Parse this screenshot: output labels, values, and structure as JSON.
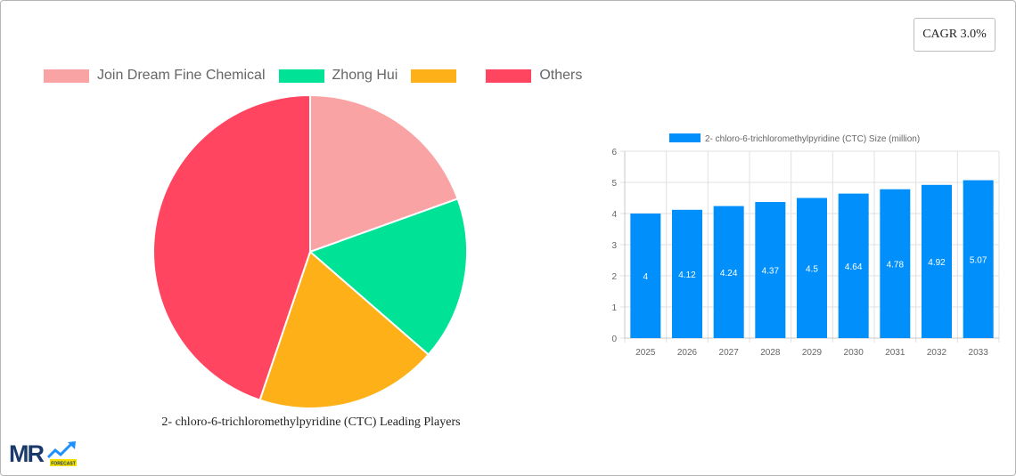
{
  "cagr": {
    "label": "CAGR 3.0%"
  },
  "pie": {
    "caption": "2- chloro-6-trichloromethylpyridine (CTC) Leading Players",
    "legend": [
      {
        "label": "Join Dream Fine Chemical",
        "color": "#f9a3a4"
      },
      {
        "label": "Zhong Hui",
        "color": "#00e396"
      },
      {
        "label": "",
        "color": "#feb019"
      },
      {
        "label": "Others",
        "color": "#ff4560"
      }
    ]
  },
  "bar": {
    "legend_label": "2- chloro-6-trichloromethylpyridine (CTC) Size (million)",
    "color": "#008ffb"
  },
  "logo": {
    "text": "MR",
    "badge": "FORECAST"
  },
  "chart_data": [
    {
      "type": "pie",
      "title": "2- chloro-6-trichloromethylpyridine (CTC) Leading Players",
      "categories": [
        "Join Dream Fine Chemical",
        "Zhong Hui",
        "",
        "Others"
      ],
      "values": [
        19.5,
        16.9,
        18.8,
        44.8
      ],
      "colors": [
        "#f9a3a4",
        "#00e396",
        "#feb019",
        "#ff4560"
      ],
      "legend_position": "top"
    },
    {
      "type": "bar",
      "title": "",
      "categories": [
        "2025",
        "2026",
        "2027",
        "2028",
        "2029",
        "2030",
        "2031",
        "2032",
        "2033"
      ],
      "series": [
        {
          "name": "2- chloro-6-trichloromethylpyridine (CTC) Size (million)",
          "values": [
            4,
            4.12,
            4.24,
            4.37,
            4.5,
            4.64,
            4.78,
            4.92,
            5.07
          ]
        }
      ],
      "xlabel": "",
      "ylabel": "",
      "ylim": [
        0,
        6
      ],
      "yticks": [
        0,
        1,
        2,
        3,
        4,
        5,
        6
      ],
      "grid": true,
      "legend_position": "top",
      "data_labels": true
    }
  ]
}
